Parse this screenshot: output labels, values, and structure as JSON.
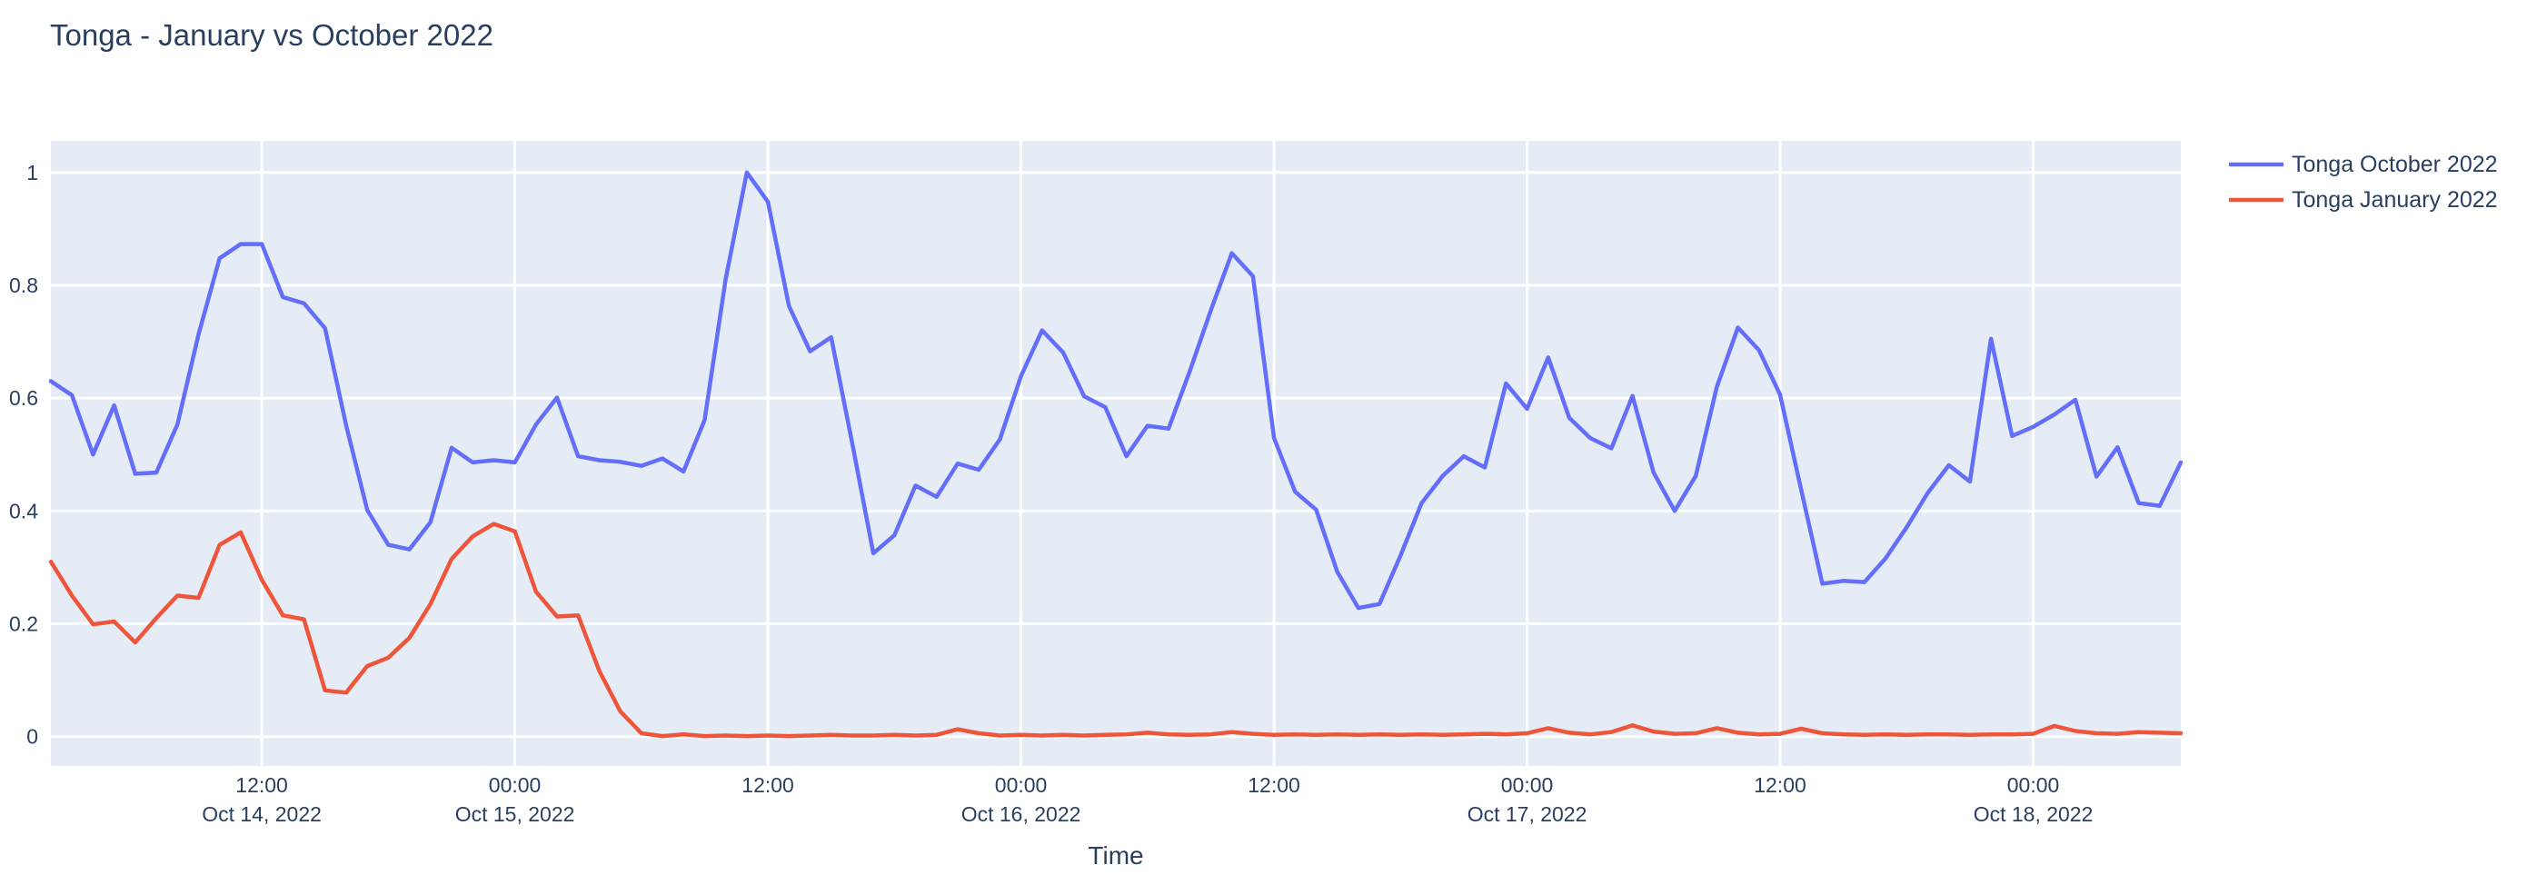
{
  "title": "Tonga - January vs October 2022",
  "colors": {
    "paper_bg": "#ffffff",
    "plot_bg": "#e5ecf6",
    "grid": "#ffffff",
    "text": "#2a3f5f",
    "series_october": "#636efa",
    "series_january": "#ef553b"
  },
  "chart_data": {
    "type": "line",
    "title": "Tonga - January vs October 2022",
    "xlabel": "Time",
    "ylabel": "",
    "grid": true,
    "legend_position": "top-right-outside",
    "x_start": "2022-10-14 02:00",
    "x_step_hours": 1,
    "n_points": 102,
    "ylim": [
      -0.052,
      1.056
    ],
    "yticks": [
      0,
      0.2,
      0.4,
      0.6,
      0.8,
      1
    ],
    "xticks": [
      {
        "index": 10,
        "time": "12:00",
        "date": "Oct 14, 2022"
      },
      {
        "index": 22,
        "time": "00:00",
        "date": "Oct 15, 2022"
      },
      {
        "index": 34,
        "time": "12:00",
        "date": ""
      },
      {
        "index": 46,
        "time": "00:00",
        "date": "Oct 16, 2022"
      },
      {
        "index": 58,
        "time": "12:00",
        "date": ""
      },
      {
        "index": 70,
        "time": "00:00",
        "date": "Oct 17, 2022"
      },
      {
        "index": 82,
        "time": "12:00",
        "date": ""
      },
      {
        "index": 94,
        "time": "00:00",
        "date": "Oct 18, 2022"
      }
    ],
    "series": [
      {
        "name": "Tonga October 2022",
        "color": "#636efa",
        "values": [
          0.63,
          0.605,
          0.5,
          0.587,
          0.466,
          0.468,
          0.553,
          0.713,
          0.848,
          0.873,
          0.873,
          0.779,
          0.768,
          0.724,
          0.552,
          0.402,
          0.34,
          0.332,
          0.38,
          0.512,
          0.486,
          0.49,
          0.486,
          0.553,
          0.601,
          0.497,
          0.49,
          0.487,
          0.48,
          0.493,
          0.47,
          0.561,
          0.812,
          1.0,
          0.948,
          0.763,
          0.683,
          0.708,
          0.52,
          0.325,
          0.357,
          0.445,
          0.425,
          0.484,
          0.473,
          0.527,
          0.639,
          0.72,
          0.681,
          0.603,
          0.584,
          0.497,
          0.551,
          0.546,
          0.647,
          0.755,
          0.857,
          0.816,
          0.529,
          0.434,
          0.402,
          0.292,
          0.228,
          0.235,
          0.321,
          0.414,
          0.462,
          0.497,
          0.477,
          0.626,
          0.581,
          0.672,
          0.565,
          0.529,
          0.511,
          0.604,
          0.468,
          0.4,
          0.462,
          0.62,
          0.725,
          0.685,
          0.606,
          0.437,
          0.271,
          0.276,
          0.274,
          0.316,
          0.371,
          0.432,
          0.481,
          0.452,
          0.705,
          0.533,
          0.549,
          0.571,
          0.597,
          0.461,
          0.513,
          0.414,
          0.409,
          0.486
        ]
      },
      {
        "name": "Tonga January 2022",
        "color": "#ef553b",
        "values": [
          0.31,
          0.25,
          0.199,
          0.204,
          0.167,
          0.21,
          0.25,
          0.246,
          0.34,
          0.362,
          0.278,
          0.215,
          0.208,
          0.082,
          0.078,
          0.125,
          0.14,
          0.175,
          0.235,
          0.315,
          0.355,
          0.377,
          0.364,
          0.257,
          0.213,
          0.215,
          0.117,
          0.045,
          0.006,
          0.001,
          0.004,
          0.001,
          0.002,
          0.001,
          0.002,
          0.001,
          0.002,
          0.003,
          0.002,
          0.002,
          0.003,
          0.002,
          0.003,
          0.013,
          0.006,
          0.002,
          0.003,
          0.002,
          0.003,
          0.002,
          0.003,
          0.004,
          0.007,
          0.004,
          0.003,
          0.004,
          0.008,
          0.005,
          0.003,
          0.004,
          0.003,
          0.004,
          0.003,
          0.004,
          0.003,
          0.004,
          0.003,
          0.004,
          0.005,
          0.004,
          0.006,
          0.015,
          0.007,
          0.004,
          0.008,
          0.02,
          0.009,
          0.005,
          0.006,
          0.015,
          0.007,
          0.004,
          0.005,
          0.014,
          0.006,
          0.004,
          0.003,
          0.004,
          0.003,
          0.004,
          0.004,
          0.003,
          0.004,
          0.004,
          0.005,
          0.019,
          0.01,
          0.006,
          0.005,
          0.008,
          0.007,
          0.006
        ]
      }
    ]
  },
  "legend": {
    "items": [
      {
        "label": "Tonga October 2022"
      },
      {
        "label": "Tonga January 2022"
      }
    ]
  }
}
